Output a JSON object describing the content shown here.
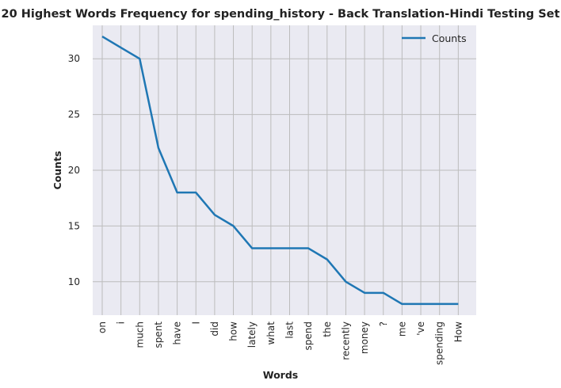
{
  "chart_data": {
    "type": "line",
    "title": "20 Highest Words Frequency for spending_history - Back Translation-Hindi Testing Set",
    "xlabel": "Words",
    "ylabel": "Counts",
    "categories": [
      "on",
      "i",
      "much",
      "spent",
      "have",
      "I",
      "did",
      "how",
      "lately",
      "what",
      "last",
      "spend",
      "the",
      "recently",
      "money",
      "?",
      "me",
      "'ve",
      "spending",
      "How"
    ],
    "series": [
      {
        "name": "Counts",
        "values": [
          32,
          31,
          30,
          22,
          18,
          18,
          16,
          15,
          13,
          13,
          13,
          13,
          12,
          10,
          9,
          9,
          8,
          8,
          8,
          8
        ]
      }
    ],
    "yticks": [
      10,
      15,
      20,
      25,
      30
    ],
    "ylim": [
      7.0,
      33.0
    ],
    "grid": true,
    "legend_position": "top-right",
    "colors": {
      "line": "#1f77b4",
      "plot_bg": "#eaeaf2",
      "grid": "#bcbcbc"
    }
  }
}
